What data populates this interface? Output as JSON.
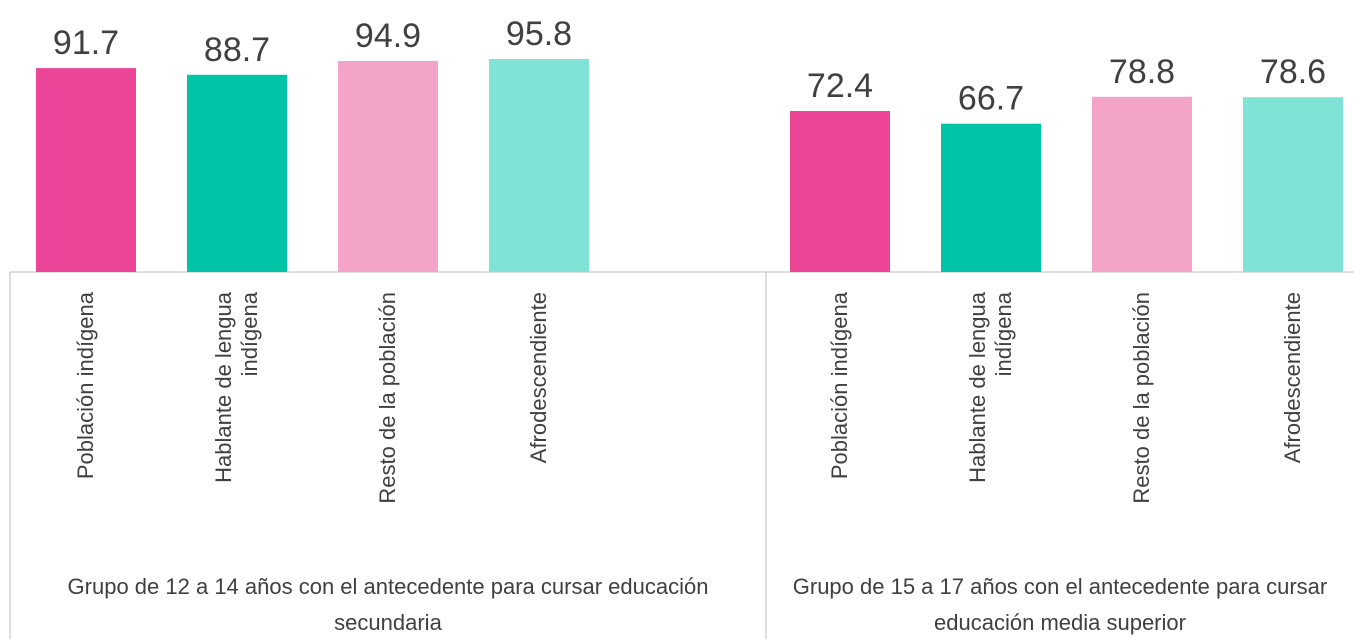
{
  "chart_data": {
    "type": "bar",
    "colors": [
      "#ec4497",
      "#00c4a7",
      "#f4a3c9",
      "#80e3d5"
    ],
    "groups": [
      {
        "label": "Grupo de 12 a 14 años con el antecedente para cursar educación secundaria",
        "categories": [
          "Población indígena",
          "Hablante de lengua indígena",
          "Resto de la población",
          "Afrodescendiente"
        ],
        "values": [
          91.7,
          88.7,
          94.9,
          95.8
        ]
      },
      {
        "label": "Grupo de 15 a 17 años con el antecedente para cursar educación media superior",
        "categories": [
          "Población indígena",
          "Hablante de lengua indígena",
          "Resto de la población",
          "Afrodescendiente"
        ],
        "values": [
          72.4,
          66.7,
          78.8,
          78.6
        ]
      }
    ]
  }
}
